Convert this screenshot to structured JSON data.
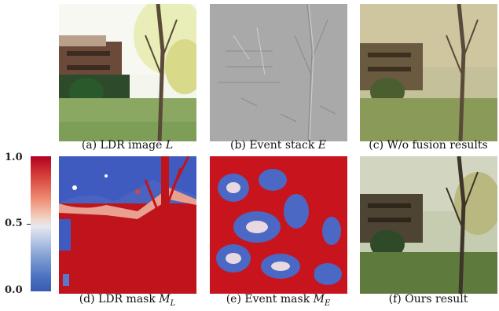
{
  "panels": [
    {
      "id": "a",
      "caption": "(a) LDR image ",
      "symbol": "L"
    },
    {
      "id": "b",
      "caption": "(b) Event stack ",
      "symbol": "E"
    },
    {
      "id": "c",
      "caption": "(c) W/o fusion results",
      "symbol": ""
    },
    {
      "id": "d",
      "caption": "(d) LDR mask ",
      "symbol": "M_L"
    },
    {
      "id": "e",
      "caption": "(e) Event mask ",
      "symbol": "M_E"
    },
    {
      "id": "f",
      "caption": "(f) Ours result",
      "symbol": ""
    }
  ],
  "colorbar": {
    "ticks": [
      "1.0",
      "0.5",
      "0.0"
    ],
    "colors": {
      "high": "#b3001e",
      "mid": "#e6e8ef",
      "low": "#3a5bb0"
    }
  }
}
